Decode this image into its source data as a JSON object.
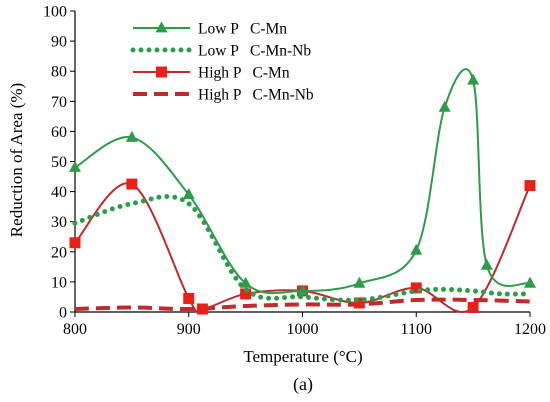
{
  "chart_data": {
    "type": "line",
    "title": "",
    "xlabel": "Temperature (°C)",
    "ylabel": "Reduction of Area (%)",
    "xlim": [
      800,
      1200
    ],
    "ylim": [
      0,
      100
    ],
    "xticks": [
      800,
      900,
      1000,
      1100,
      1200
    ],
    "yticks": [
      0,
      10,
      20,
      30,
      40,
      50,
      60,
      70,
      80,
      90,
      100
    ],
    "grid": false,
    "legend_position": "top-left",
    "caption": "(a)",
    "series": [
      {
        "name": "Low P   C-Mn",
        "color": "#2e9b4a",
        "line_style": "solid",
        "marker": "triangle",
        "x": [
          800,
          850,
          900,
          950,
          1000,
          1050,
          1100,
          1125,
          1150,
          1162,
          1200
        ],
        "y": [
          48,
          58,
          39,
          9.5,
          7,
          9.5,
          20.5,
          68,
          77,
          15.5,
          9.5
        ]
      },
      {
        "name": "Low P   C-Mn-Nb",
        "color": "#2e9b4a",
        "line_style": "dotted",
        "marker": "none",
        "x": [
          800,
          850,
          900,
          950,
          1000,
          1050,
          1100,
          1125,
          1150,
          1175,
          1200
        ],
        "y": [
          29.5,
          36,
          36,
          7.5,
          5,
          4,
          7,
          7.5,
          7,
          6,
          6
        ]
      },
      {
        "name": "High P   C-Mn",
        "color": "#bf2b2b",
        "line_style": "solid",
        "marker": "square",
        "x": [
          800,
          850,
          900,
          912,
          950,
          1000,
          1050,
          1100,
          1150,
          1200
        ],
        "y": [
          23,
          42.5,
          4.5,
          1,
          6,
          7,
          3,
          8,
          1.5,
          42
        ]
      },
      {
        "name": "High P   C-Mn-Nb",
        "color": "#bf2b2b",
        "line_style": "dashed",
        "marker": "none",
        "x": [
          800,
          850,
          900,
          950,
          1000,
          1050,
          1100,
          1150,
          1200
        ],
        "y": [
          1,
          1.5,
          1,
          2,
          2.5,
          2.5,
          4,
          4,
          3.5
        ]
      }
    ]
  }
}
